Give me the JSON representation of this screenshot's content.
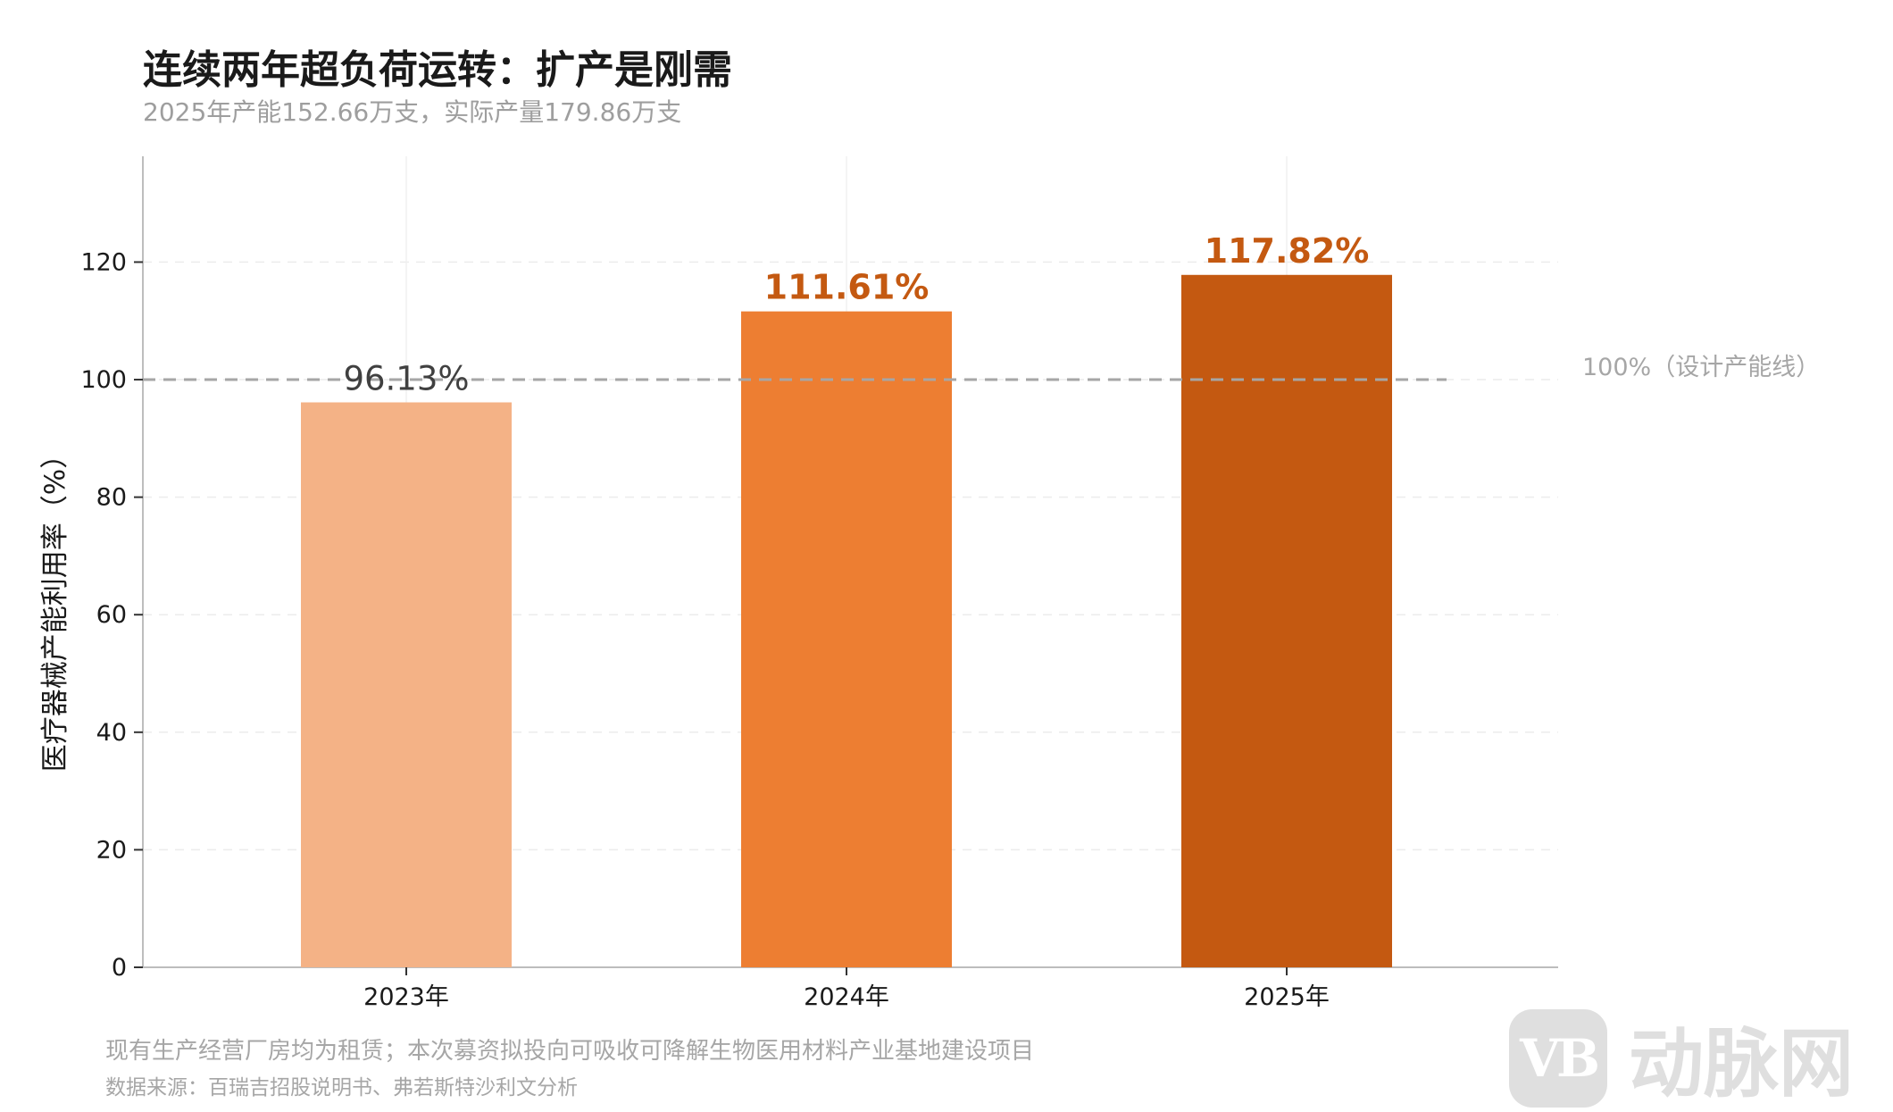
{
  "header": {
    "title": "连续两年超负荷运转：扩产是刚需",
    "subtitle": "2025年产能152.66万支，实际产量179.86万支"
  },
  "chart_data": {
    "type": "bar",
    "categories": [
      "2023年",
      "2024年",
      "2025年"
    ],
    "values": [
      96.13,
      111.61,
      117.82
    ],
    "value_labels": [
      "96.13%",
      "111.61%",
      "117.82%"
    ],
    "bar_colors": [
      "#f4b286",
      "#ed7e32",
      "#c45911"
    ],
    "value_label_colors": [
      "#404040",
      "#c45911",
      "#c45911"
    ],
    "ylabel": "医疗器械产能利用率（%）",
    "ylim": [
      0,
      138
    ],
    "yticks": [
      0,
      20,
      40,
      60,
      80,
      100,
      120
    ],
    "grid": true,
    "reference_line": {
      "value": 100,
      "label": "100%（设计产能线）",
      "color": "#a6a6a6"
    }
  },
  "footer": {
    "note": "现有生产经营厂房均为租赁；本次募资拟投向可吸收可降解生物医用材料产业基地建设项目",
    "source": "数据来源：百瑞吉招股说明书、弗若斯特沙利文分析"
  },
  "watermark": {
    "badge": "VB",
    "text": "动脉网"
  }
}
